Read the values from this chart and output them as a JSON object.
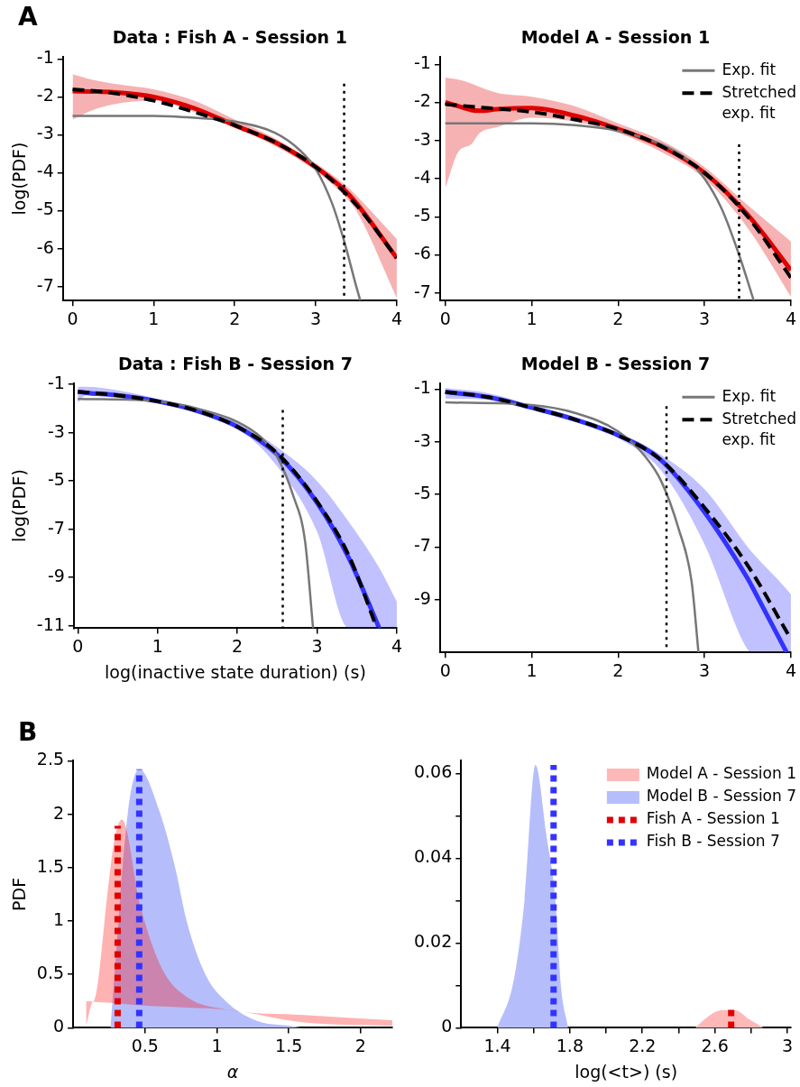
{
  "chart_data": [
    {
      "type": "line",
      "title": "Data : Fish A - Session 1",
      "ylabel": "log(PDF)",
      "annotations": [
        "A"
      ],
      "xlim": [
        -0.12,
        4
      ],
      "ylim": [
        -7.37,
        -0.94
      ],
      "xticks": [
        0,
        1,
        2,
        3,
        4
      ],
      "yticks": [
        -7,
        -6,
        -5,
        -4,
        -3,
        -2,
        -1
      ],
      "series": [
        {
          "color": "#e00000",
          "x": [
            0,
            0.25,
            0.5,
            1,
            1.5,
            2,
            2.5,
            3,
            3.35,
            3.5,
            4
          ],
          "values": [
            -1.85,
            -1.86,
            -1.88,
            -2.0,
            -2.3,
            -2.75,
            -3.2,
            -3.85,
            -4.45,
            -4.8,
            -6.25
          ],
          "lower": [
            -2.6,
            -2.35,
            -2.2,
            -2.1,
            -2.4,
            -2.8,
            -3.3,
            -3.95,
            -4.6,
            -5.0,
            -7.3
          ],
          "upper": [
            -1.4,
            -1.55,
            -1.65,
            -1.8,
            -2.1,
            -2.6,
            -3.1,
            -3.75,
            -4.3,
            -4.6,
            -5.75
          ]
        },
        {
          "color": "#777777",
          "x": [
            0,
            1,
            1.5,
            2,
            2.5,
            2.8,
            3,
            3.2,
            3.35,
            3.5,
            3.55
          ],
          "values": [
            -2.5,
            -2.5,
            -2.55,
            -2.65,
            -2.95,
            -3.4,
            -3.9,
            -4.8,
            -5.8,
            -7.0,
            -7.37
          ]
        },
        {
          "color": "#000000",
          "line_style": "dashed",
          "x": [
            0,
            0.5,
            1,
            1.5,
            2,
            2.5,
            3,
            3.5,
            4
          ],
          "values": [
            -1.8,
            -1.9,
            -2.1,
            -2.4,
            -2.75,
            -3.2,
            -3.85,
            -4.85,
            -6.25
          ]
        },
        {
          "color": "#000000",
          "line_style": "dotted",
          "x": [
            3.35,
            3.35
          ],
          "values": [
            -1.65,
            -7.37
          ]
        }
      ]
    },
    {
      "type": "line",
      "title": "Model A - Session 1",
      "legend": "top right",
      "xlim": [
        -0.06,
        4
      ],
      "ylim": [
        -7.2,
        -0.8
      ],
      "xticks": [
        0,
        1,
        2,
        3,
        4
      ],
      "yticks": [
        -7,
        -6,
        -5,
        -4,
        -3,
        -2,
        -1
      ],
      "series": [
        {
          "color": "#e00000",
          "x": [
            0,
            0.15,
            0.3,
            0.4,
            0.6,
            1,
            1.5,
            2,
            2.5,
            3,
            3.5,
            4
          ],
          "values": [
            -2.0,
            -2.1,
            -2.2,
            -2.22,
            -2.18,
            -2.15,
            -2.35,
            -2.7,
            -3.15,
            -3.85,
            -4.95,
            -6.4
          ],
          "lower": [
            -4.25,
            -3.3,
            -3.1,
            -2.8,
            -2.65,
            -2.4,
            -2.5,
            -2.8,
            -3.3,
            -4.0,
            -5.3,
            -7.1
          ],
          "upper": [
            -1.35,
            -1.4,
            -1.5,
            -1.6,
            -1.75,
            -1.85,
            -2.1,
            -2.55,
            -3.0,
            -3.7,
            -4.7,
            -5.65
          ]
        },
        {
          "name": "Exp. fit",
          "color": "#777777",
          "x": [
            0,
            1,
            1.5,
            2,
            2.5,
            2.8,
            3,
            3.2,
            3.4,
            3.57
          ],
          "values": [
            -2.55,
            -2.55,
            -2.6,
            -2.75,
            -3.1,
            -3.5,
            -4.0,
            -4.8,
            -6.0,
            -7.2
          ]
        },
        {
          "name": "Stretched exp. fit",
          "color": "#000000",
          "line_style": "dashed",
          "x": [
            0,
            0.5,
            1,
            1.5,
            2,
            2.5,
            3,
            3.5,
            4
          ],
          "values": [
            -2.05,
            -2.15,
            -2.25,
            -2.45,
            -2.7,
            -3.15,
            -3.85,
            -5.0,
            -6.6
          ]
        },
        {
          "color": "#000000",
          "line_style": "dotted",
          "x": [
            3.4,
            3.4
          ],
          "values": [
            -3.1,
            -7.2
          ]
        }
      ]
    },
    {
      "type": "line",
      "title": "Data : Fish B - Session 7",
      "ylabel": "log(PDF)",
      "xlabel": "log(inactive state duration) (s)",
      "xlim": [
        -0.05,
        4
      ],
      "ylim": [
        -11.1,
        -0.95
      ],
      "xticks": [
        0,
        1,
        2,
        3,
        4
      ],
      "yticks": [
        -11,
        -9,
        -7,
        -5,
        -3,
        -1
      ],
      "series": [
        {
          "color": "#3333ff",
          "x": [
            0,
            0.1,
            0.5,
            1,
            1.5,
            2,
            2.5,
            3,
            3.4,
            3.78,
            4
          ],
          "values": [
            -1.3,
            -1.35,
            -1.45,
            -1.7,
            -2.1,
            -2.75,
            -3.9,
            -5.9,
            -8.2,
            -11.1,
            null
          ],
          "lower": [
            -1.75,
            -1.45,
            -1.55,
            -1.75,
            -2.15,
            -2.8,
            -4.4,
            -7.1,
            -11.1,
            -11.1,
            -11.1
          ],
          "upper": [
            -1.1,
            -1.1,
            -1.25,
            -1.6,
            -2.05,
            -2.6,
            -3.6,
            -5.0,
            -6.7,
            -8.6,
            -10.0
          ]
        },
        {
          "color": "#777777",
          "x": [
            0,
            1,
            1.5,
            2,
            2.3,
            2.5,
            2.7,
            2.85,
            2.95
          ],
          "values": [
            -1.6,
            -1.7,
            -2.0,
            -2.55,
            -3.2,
            -4.0,
            -5.6,
            -7.5,
            -11.1
          ]
        },
        {
          "color": "#000000",
          "line_style": "dashed",
          "x": [
            0,
            0.5,
            1,
            1.5,
            2,
            2.5,
            3,
            3.4,
            3.75
          ],
          "values": [
            -1.3,
            -1.45,
            -1.7,
            -2.1,
            -2.75,
            -3.85,
            -5.85,
            -8.1,
            -11.1
          ]
        },
        {
          "color": "#000000",
          "line_style": "dotted",
          "x": [
            2.57,
            2.57
          ],
          "values": [
            -2.06,
            -11.1
          ]
        }
      ]
    },
    {
      "type": "line",
      "title": "Model B - Session 7",
      "legend": "top right",
      "xlim": [
        -0.06,
        4
      ],
      "ylim": [
        -11.0,
        -0.77
      ],
      "xticks": [
        0,
        1,
        2,
        3,
        4
      ],
      "yticks": [
        -9,
        -7,
        -5,
        -3,
        -1
      ],
      "series": [
        {
          "color": "#3333ff",
          "x": [
            0,
            0.5,
            1,
            1.5,
            2,
            2.5,
            3,
            3.5,
            3.55,
            3.95,
            4
          ],
          "values": [
            -1.1,
            -1.3,
            -1.7,
            -2.15,
            -2.75,
            -3.7,
            -5.67,
            -8.2,
            -8.5,
            -11.0,
            null
          ],
          "lower": [
            -1.35,
            -1.4,
            -1.75,
            -2.2,
            -2.85,
            -4.1,
            -6.9,
            -10.9,
            -11.0,
            -11.0,
            -11.0
          ],
          "upper": [
            -0.95,
            -1.15,
            -1.6,
            -2.05,
            -2.65,
            -3.5,
            -4.8,
            -7.0,
            -7.2,
            -8.6,
            -8.8
          ]
        },
        {
          "name": "Exp. fit",
          "color": "#777777",
          "x": [
            0,
            1,
            1.5,
            2,
            2.3,
            2.5,
            2.7,
            2.85,
            2.93
          ],
          "values": [
            -1.5,
            -1.6,
            -1.9,
            -2.6,
            -3.5,
            -4.5,
            -6.3,
            -8.3,
            -11.0
          ]
        },
        {
          "name": "Stretched exp. fit",
          "color": "#000000",
          "line_style": "dashed",
          "x": [
            0,
            0.5,
            1,
            1.5,
            2,
            2.5,
            3,
            3.5,
            4
          ],
          "values": [
            -1.1,
            -1.3,
            -1.7,
            -2.15,
            -2.75,
            -3.7,
            -5.5,
            -7.7,
            -10.5
          ]
        },
        {
          "color": "#000000",
          "line_style": "dotted",
          "x": [
            2.56,
            2.56
          ],
          "values": [
            -1.64,
            -11.0
          ]
        }
      ]
    },
    {
      "type": "area",
      "ylabel": "PDF",
      "xlabel": "α",
      "annotations": [
        "B"
      ],
      "xlim": [
        0,
        2.22
      ],
      "ylim": [
        0,
        2.5
      ],
      "xticks": [
        0.5,
        1,
        1.5,
        2
      ],
      "yticks": [
        0,
        0.5,
        1,
        1.5,
        2,
        2.5
      ],
      "series": [
        {
          "color": "#b5befa",
          "x": [
            0.26,
            0.38,
            0.46,
            0.6,
            0.71,
            0.79,
            0.92,
            1.07,
            1.29,
            1.5,
            1.6
          ],
          "values": [
            0,
            2.0,
            2.42,
            2.03,
            1.5,
            1.0,
            0.5,
            0.24,
            0.06,
            0.02,
            0
          ]
        },
        {
          "type": "line",
          "color": "#ff0000",
          "x": [
            0.09,
            0.14,
            0.17,
            0.24,
            0.29,
            0.34,
            0.47,
            0.62,
            0.79,
            1.07,
            1.61,
            2.22
          ],
          "values": [
            null,
            null,
            null,
            null,
            null,
            null,
            null,
            null,
            null,
            null,
            null,
            null
          ],
          "lower": [
            0.02,
            0.245,
            0.24,
            0.235,
            0.23,
            0.225,
            0.21,
            0.2,
            0.19,
            0.17,
            0.05,
            0.02
          ],
          "upper": [
            0.25,
            0.245,
            0.4,
            1.27,
            1.78,
            1.95,
            1.13,
            0.55,
            0.29,
            0.17,
            0.12,
            0.07
          ]
        },
        {
          "type": "line",
          "color": "#e00000",
          "line_style": "dotted",
          "x": [
            0.31,
            0.31
          ],
          "values": [
            0,
            1.89
          ]
        },
        {
          "type": "line",
          "color": "#3333ff",
          "line_style": "dotted",
          "x": [
            0.46,
            0.46
          ],
          "values": [
            0,
            2.42
          ]
        }
      ]
    },
    {
      "type": "area",
      "xlabel": "log(<t>) (s)",
      "legend": "top right",
      "xlim": [
        1.2,
        3.02
      ],
      "ylim": [
        0,
        0.063
      ],
      "xticks": [
        1.4,
        {
          "value": 1.6,
          "label": null
        },
        1.8,
        {
          "value": 2.0,
          "label": null
        },
        2.2,
        {
          "value": 2.4,
          "label": null
        },
        2.6,
        {
          "value": 2.8,
          "label": null
        },
        3
      ],
      "yticks": [
        0,
        {
          "value": 0.01,
          "label": null
        },
        0.02,
        {
          "value": 0.03,
          "label": null
        },
        0.04,
        {
          "value": 0.05,
          "label": null
        },
        0.06
      ],
      "series": [
        {
          "name": "Model A - Session 1",
          "color": "#ffb8b8",
          "x": [
            2.49,
            2.59,
            2.64,
            2.71,
            2.79,
            2.87
          ],
          "values": [
            0,
            0.0035,
            0.0042,
            0.0042,
            0.002,
            0
          ]
        },
        {
          "name": "Model B - Session 7",
          "color": "#b5befa",
          "x": [
            1.4,
            1.49,
            1.55,
            1.61,
            1.67,
            1.72,
            1.75,
            1.79
          ],
          "values": [
            0,
            0.0112,
            0.0302,
            0.062,
            0.0455,
            0.03,
            0.01,
            0
          ]
        },
        {
          "name": "Fish A - Session 1",
          "type": "line",
          "color": "#e00000",
          "line_style": "dotted",
          "x": [
            2.69,
            2.69
          ],
          "values": [
            0,
            0.0045
          ]
        },
        {
          "name": "Fish B - Session 7",
          "type": "line",
          "color": "#3333ff",
          "line_style": "dotted",
          "x": [
            1.71,
            1.71
          ],
          "values": [
            0,
            0.062
          ]
        }
      ]
    }
  ]
}
